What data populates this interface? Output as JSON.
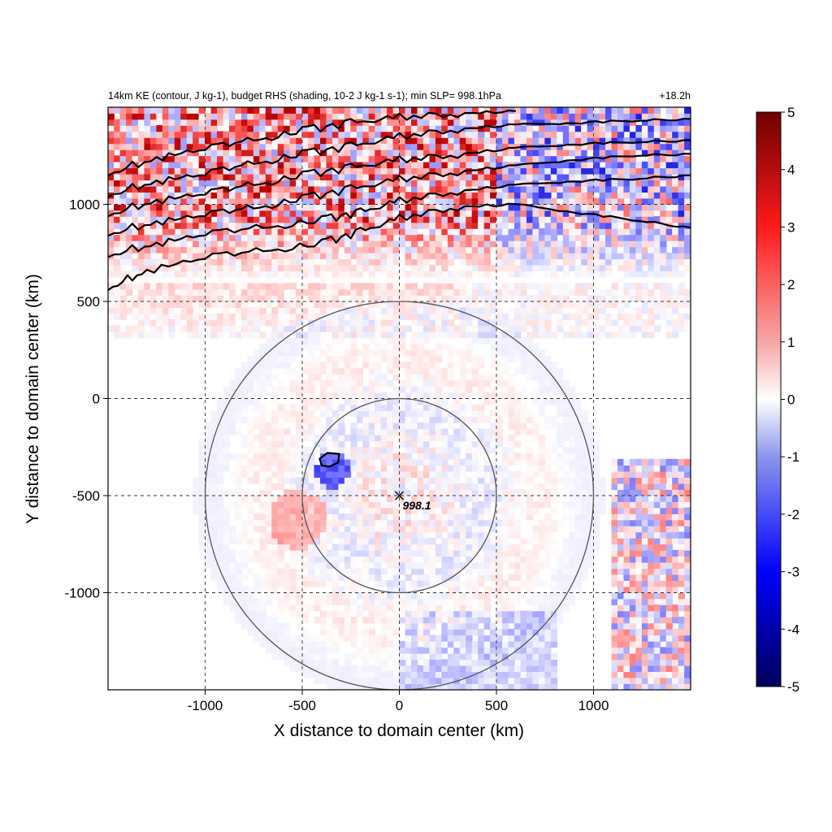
{
  "chart_data": {
    "type": "heatmap",
    "title_left": "14km KE (contour, J kg-1), budget RHS (shading, 10-2 J kg-1 s-1); min SLP= 998.1hPa",
    "title_right": "+18.2h",
    "xlabel": "X distance to domain center (km)",
    "ylabel": "Y distance to domain center (km)",
    "xlim": [
      -1500,
      1500
    ],
    "ylim": [
      -1500,
      1500
    ],
    "xticks": [
      -1000,
      -500,
      0,
      500,
      1000
    ],
    "yticks": [
      -1000,
      -500,
      0,
      500,
      1000
    ],
    "grid": true,
    "colorbar": {
      "min": -5,
      "max": 5,
      "ticks": [
        5,
        4,
        3,
        2,
        1,
        0,
        -1,
        -2,
        -3,
        -4,
        -5
      ]
    },
    "center_marker": {
      "x": 0,
      "y": -500,
      "label": "998.1"
    },
    "rings_km": [
      500,
      1000
    ],
    "ke_contours": [
      [
        [
          -1500,
          580
        ],
        [
          -1300,
          650
        ],
        [
          -1000,
          720
        ],
        [
          -700,
          760
        ],
        [
          -400,
          800
        ],
        [
          -200,
          860
        ],
        [
          0,
          930
        ],
        [
          300,
          990
        ],
        [
          600,
          1000
        ],
        [
          900,
          960
        ],
        [
          1200,
          920
        ],
        [
          1500,
          880
        ]
      ],
      [
        [
          -1500,
          750
        ],
        [
          -1250,
          790
        ],
        [
          -1000,
          840
        ],
        [
          -700,
          880
        ],
        [
          -400,
          920
        ],
        [
          -200,
          960
        ],
        [
          0,
          1020
        ],
        [
          300,
          1070
        ],
        [
          600,
          1100
        ],
        [
          900,
          1120
        ],
        [
          1200,
          1130
        ],
        [
          1500,
          1150
        ]
      ],
      [
        [
          -1500,
          860
        ],
        [
          -1250,
          900
        ],
        [
          -1000,
          940
        ],
        [
          -750,
          980
        ],
        [
          -500,
          1030
        ],
        [
          -250,
          1080
        ],
        [
          0,
          1130
        ],
        [
          300,
          1170
        ],
        [
          600,
          1200
        ],
        [
          900,
          1230
        ],
        [
          1200,
          1250
        ],
        [
          1500,
          1260
        ]
      ],
      [
        [
          -1500,
          960
        ],
        [
          -1250,
          1010
        ],
        [
          -1000,
          1050
        ],
        [
          -750,
          1100
        ],
        [
          -500,
          1150
        ],
        [
          -250,
          1190
        ],
        [
          0,
          1230
        ],
        [
          300,
          1260
        ],
        [
          600,
          1290
        ],
        [
          900,
          1310
        ],
        [
          1200,
          1320
        ],
        [
          1500,
          1330
        ]
      ],
      [
        [
          -1500,
          1060
        ],
        [
          -1250,
          1110
        ],
        [
          -1000,
          1150
        ],
        [
          -750,
          1210
        ],
        [
          -500,
          1260
        ],
        [
          -250,
          1300
        ],
        [
          0,
          1350
        ],
        [
          300,
          1390
        ],
        [
          600,
          1410
        ],
        [
          900,
          1420
        ],
        [
          1200,
          1430
        ],
        [
          1500,
          1440
        ]
      ],
      [
        [
          -1500,
          1170
        ],
        [
          -1250,
          1230
        ],
        [
          -1000,
          1280
        ],
        [
          -750,
          1330
        ],
        [
          -500,
          1380
        ],
        [
          -250,
          1420
        ],
        [
          0,
          1450
        ],
        [
          300,
          1470
        ],
        [
          600,
          1480
        ]
      ]
    ],
    "ke_blob": [
      [
        -410,
        -310
      ],
      [
        -370,
        -280
      ],
      [
        -310,
        -285
      ],
      [
        -315,
        -330
      ],
      [
        -360,
        -350
      ],
      [
        -400,
        -345
      ]
    ]
  }
}
